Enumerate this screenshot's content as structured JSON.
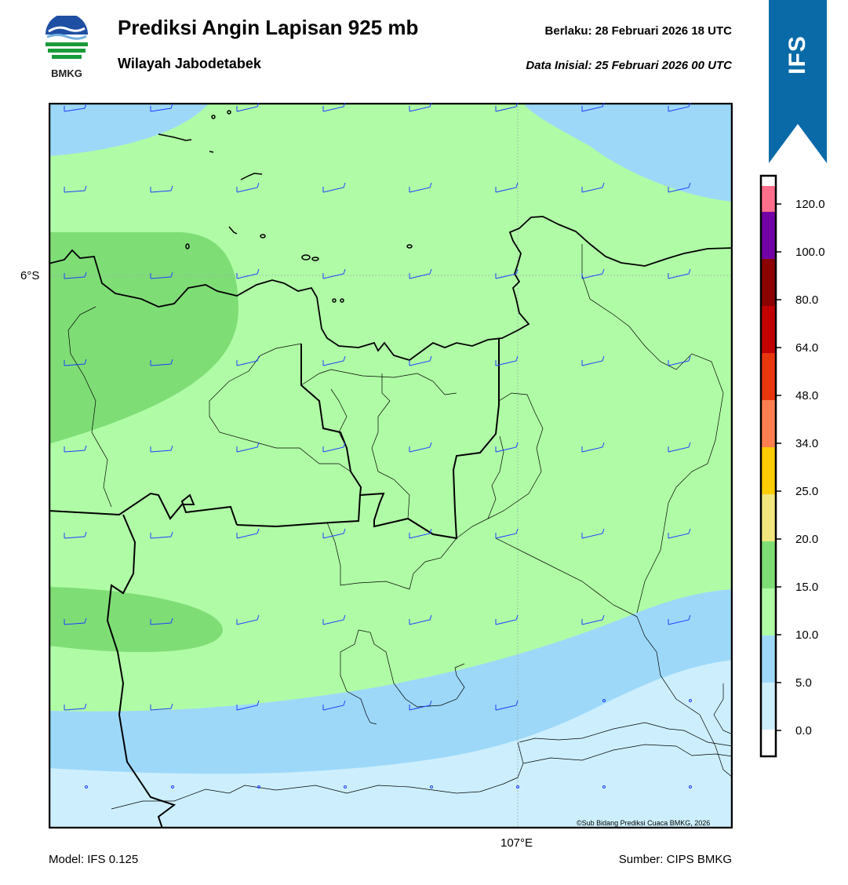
{
  "header": {
    "title": "Prediksi Angin Lapisan 925 mb",
    "subtitle": "Wilayah Jabodetabek",
    "valid_label": "Berlaku:  28 Februari 2026 18 UTC",
    "initial_label": "Data Inisial:  25 Februari 2026 00 UTC"
  },
  "logo": {
    "text": "BMKG",
    "icon": "bmkg-logo-icon"
  },
  "badge": {
    "text": "IFS",
    "color": "#0a6aa8"
  },
  "map": {
    "lat_label": "6°S",
    "lon_label": "107°E",
    "credit": "©Sub Bidang Prediksi Cuaca BMKG, 2026",
    "colors": {
      "calm": "#cdeffd",
      "light": "#9dd8f9",
      "moderate": "#b0fca6",
      "fresh": "#7fdd76"
    }
  },
  "colorbar": {
    "ticks": [
      "0.0",
      "5.0",
      "10.0",
      "15.0",
      "20.0",
      "25.0",
      "34.0",
      "48.0",
      "64.0",
      "80.0",
      "100.0",
      "120.0"
    ],
    "colors": [
      "#ffffff",
      "#cdeffd",
      "#9dd8f9",
      "#b0fca6",
      "#7fdd76",
      "#f1e77e",
      "#ffcc00",
      "#ff7f50",
      "#e8360d",
      "#c30000",
      "#8b0000",
      "#7200a4",
      "#ff6e8a"
    ]
  },
  "footer": {
    "model": "Model: IFS 0.125",
    "source": "Sumber: CIPS BMKG"
  }
}
